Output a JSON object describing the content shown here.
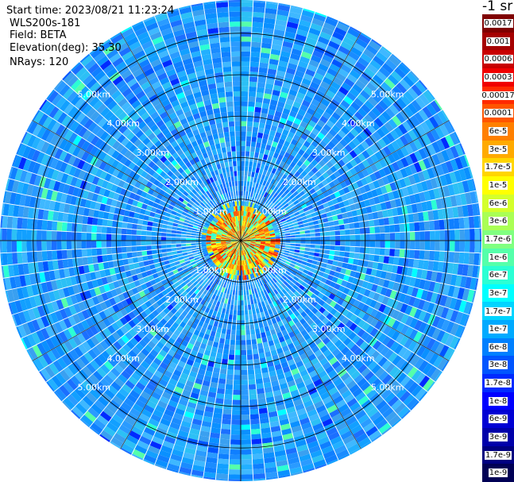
{
  "header": {
    "start_time": "Start time: 2023/08/21 11:23:24",
    "instrument": "WLS200s-181",
    "field": "Field: BETA",
    "elevation": "Elevation(deg): 35.30",
    "nrays": "NRays: 120"
  },
  "colorbar": {
    "unit": "-1 sr",
    "labels": [
      "0.0017",
      "0.001",
      "0.0006",
      "0.0003",
      "0.00017",
      "0.0001",
      "6e-5",
      "3e-5",
      "1.7e-5",
      "1e-5",
      "6e-6",
      "3e-6",
      "1.7e-6",
      "1e-6",
      "6e-7",
      "3e-7",
      "1.7e-7",
      "1e-7",
      "6e-8",
      "3e-8",
      "1.7e-8",
      "1e-8",
      "6e-9",
      "3e-9",
      "1.7e-9",
      "1e-9"
    ],
    "colors": [
      "#7f0000",
      "#a50000",
      "#c80000",
      "#f00000",
      "#ff2a00",
      "#ff5500",
      "#ff8000",
      "#ffaa00",
      "#ffd500",
      "#ffff00",
      "#d4ff2b",
      "#aaff55",
      "#80ff80",
      "#55ffaa",
      "#2bffd4",
      "#00ffff",
      "#00d4ff",
      "#00aaff",
      "#0080ff",
      "#0055ff",
      "#002aff",
      "#0000ff",
      "#0000d4",
      "#0000aa",
      "#000080",
      "#000055"
    ]
  },
  "chart_data": {
    "type": "heatmap",
    "subtype": "polar PPI scan",
    "field": "BETA",
    "elevation_deg": 35.3,
    "n_rays": 120,
    "range_ring_labels": [
      "1.00km",
      "2.00km",
      "3.00km",
      "4.00km",
      "5.00km"
    ],
    "range_rings_km": [
      1,
      2,
      3,
      4,
      5
    ],
    "max_range_km": 5.8,
    "dominant_value": "1e-7",
    "near_field_value": "3e-5",
    "near_field_radius_km": 0.9
  }
}
